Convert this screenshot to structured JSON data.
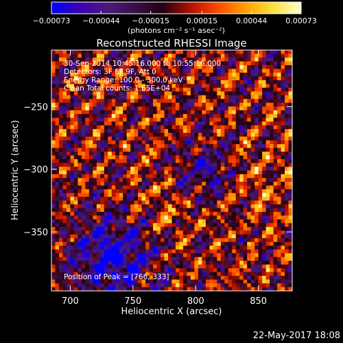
{
  "chart_data": {
    "type": "heatmap",
    "title": "Reconstructed RHESSI Image",
    "xlabel": "Heliocentric X (arcsec)",
    "ylabel": "Heliocentric Y (arcsec)",
    "xlim": [
      685,
      877
    ],
    "ylim": [
      -397,
      -205
    ],
    "x_ticks": [
      700,
      750,
      800,
      850
    ],
    "y_ticks": [
      -250,
      -300,
      -350
    ],
    "x_tick_labels": [
      "700",
      "750",
      "800",
      "850"
    ],
    "y_tick_labels": [
      "−250",
      "−300",
      "−350"
    ],
    "colorbar": {
      "min": -0.00073,
      "max": 0.00073,
      "ticks": [
        -0.00073,
        -0.00044,
        -0.00015,
        0.00015,
        0.00044,
        0.00073
      ],
      "tick_labels": [
        "−0.00073",
        "−0.00044",
        "−0.00015",
        "0.00015",
        "0.00044",
        "0.00073"
      ],
      "units": "(photons cm⁻² s⁻¹ asec⁻²)",
      "colormap": [
        "#0000ff",
        "#3a00b0",
        "#4b1a7e",
        "#3a0f4a",
        "#200010",
        "#b01000",
        "#ff4a00",
        "#ffa000",
        "#ffe040",
        "#ffffd0"
      ]
    },
    "annotations": [
      "30-Sep-2014 10:45:16.000 to 10:55:16.000",
      "Detectors: 3F 6F 9F, Att 0",
      "Energy Range: 100.0 - 300.0 keV",
      "Clean     Total counts: 1.65E+04"
    ],
    "peak_label": "Position of Peak = [766,-333]",
    "peak_position": [
      766,
      -333
    ]
  },
  "footer": {
    "date": "22-May-2017 18:08"
  }
}
